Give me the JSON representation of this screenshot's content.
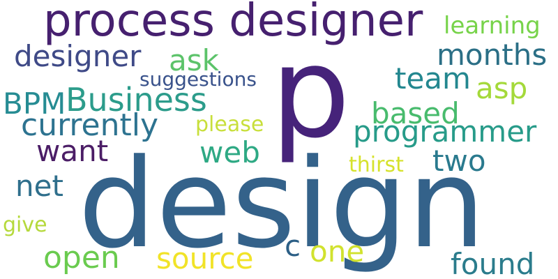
{
  "words": [
    {
      "text": "design",
      "color": "#34628a"
    },
    {
      "text": "p",
      "color": "#46237a"
    },
    {
      "text": "process designer",
      "color": "#46206f"
    },
    {
      "text": "designer",
      "color": "#3f4a87"
    },
    {
      "text": "ask",
      "color": "#5cc36a"
    },
    {
      "text": "months",
      "color": "#2b6f86"
    },
    {
      "text": "learning",
      "color": "#77d34a"
    },
    {
      "text": "suggestions",
      "color": "#39528b"
    },
    {
      "text": "team",
      "color": "#23878f"
    },
    {
      "text": "asp",
      "color": "#a4d93a"
    },
    {
      "text": "BPM",
      "color": "#268c93"
    },
    {
      "text": "Business",
      "color": "#2c9c8b"
    },
    {
      "text": "based",
      "color": "#48bb6d"
    },
    {
      "text": "currently",
      "color": "#2d7390"
    },
    {
      "text": "please",
      "color": "#c8df3b"
    },
    {
      "text": "programmer",
      "color": "#279b89"
    },
    {
      "text": "want",
      "color": "#4b1d66"
    },
    {
      "text": "web",
      "color": "#2ea984"
    },
    {
      "text": "two",
      "color": "#2a7a8e"
    },
    {
      "text": "thirst",
      "color": "#d6e22c"
    },
    {
      "text": "net",
      "color": "#2f6f8c"
    },
    {
      "text": "give",
      "color": "#b5d93c"
    },
    {
      "text": "open",
      "color": "#6acb4f"
    },
    {
      "text": "source",
      "color": "#f1e328"
    },
    {
      "text": "c",
      "color": "#2c5f86"
    },
    {
      "text": "one",
      "color": "#d1e22e"
    },
    {
      "text": "found",
      "color": "#2b7c8c"
    }
  ]
}
